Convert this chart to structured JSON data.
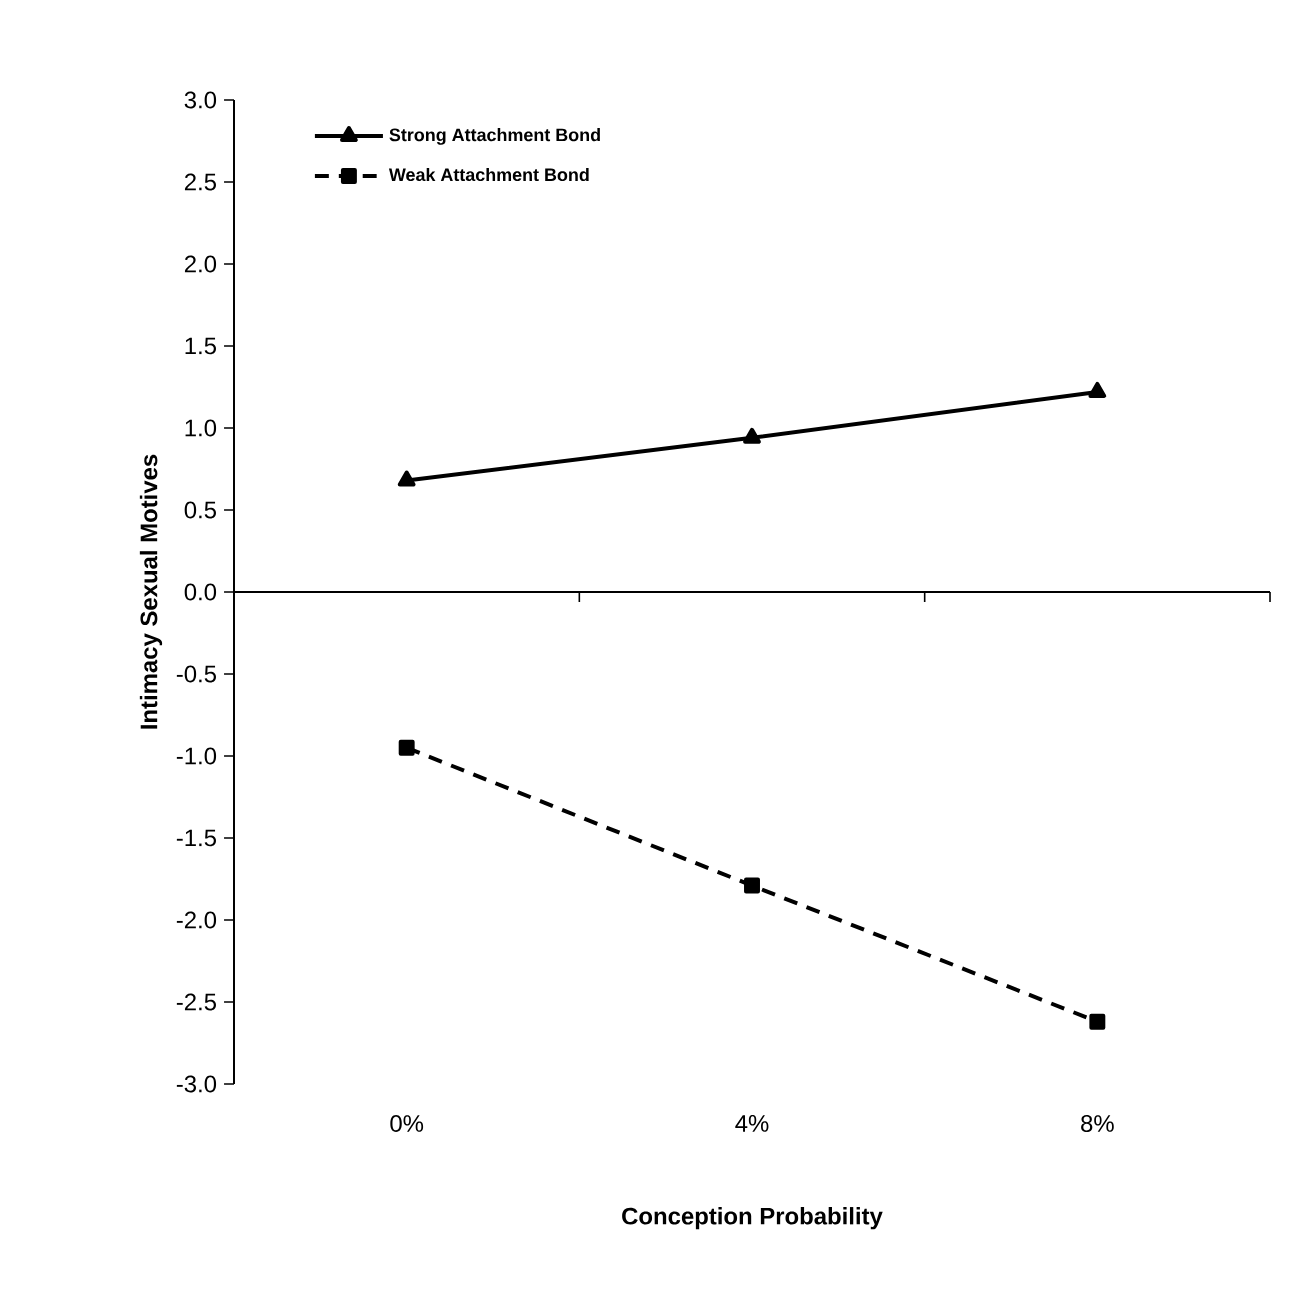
{
  "chart_data": {
    "type": "line",
    "xlabel": "Conception Probability",
    "ylabel": "Intimacy Sexual Motives",
    "categories": [
      "0%",
      "4%",
      "8%"
    ],
    "series": [
      {
        "name": "Strong Attachment Bond",
        "color": "#000000",
        "values": [
          0.68,
          0.94,
          1.22
        ],
        "marker": "triangle",
        "line_style": "solid"
      },
      {
        "name": "Weak Attachment Bond",
        "color": "#000000",
        "values": [
          -0.95,
          -1.79,
          -2.62
        ],
        "marker": "square",
        "line_style": "dashed"
      }
    ],
    "ylim": [
      -3.0,
      3.0
    ],
    "yticks": [
      {
        "value": 3.0,
        "label": "3.0"
      },
      {
        "value": 2.5,
        "label": "2.5"
      },
      {
        "value": 2.0,
        "label": "2.0"
      },
      {
        "value": 1.5,
        "label": "1.5"
      },
      {
        "value": 1.0,
        "label": "1.0"
      },
      {
        "value": 0.5,
        "label": "0.5"
      },
      {
        "value": 0.0,
        "label": "0.0"
      },
      {
        "value": -0.5,
        "label": "-0.5"
      },
      {
        "value": -1.0,
        "label": "-1.0"
      },
      {
        "value": -1.5,
        "label": "-1.5"
      },
      {
        "value": -2.0,
        "label": "-2.0"
      },
      {
        "value": -2.5,
        "label": "-2.5"
      },
      {
        "value": -3.0,
        "label": "-3.0"
      }
    ],
    "ref_lines": [
      {
        "axis": "y",
        "value": 0,
        "color": "#000000",
        "line_style": "solid"
      }
    ],
    "grid": false,
    "legend": "top left"
  }
}
